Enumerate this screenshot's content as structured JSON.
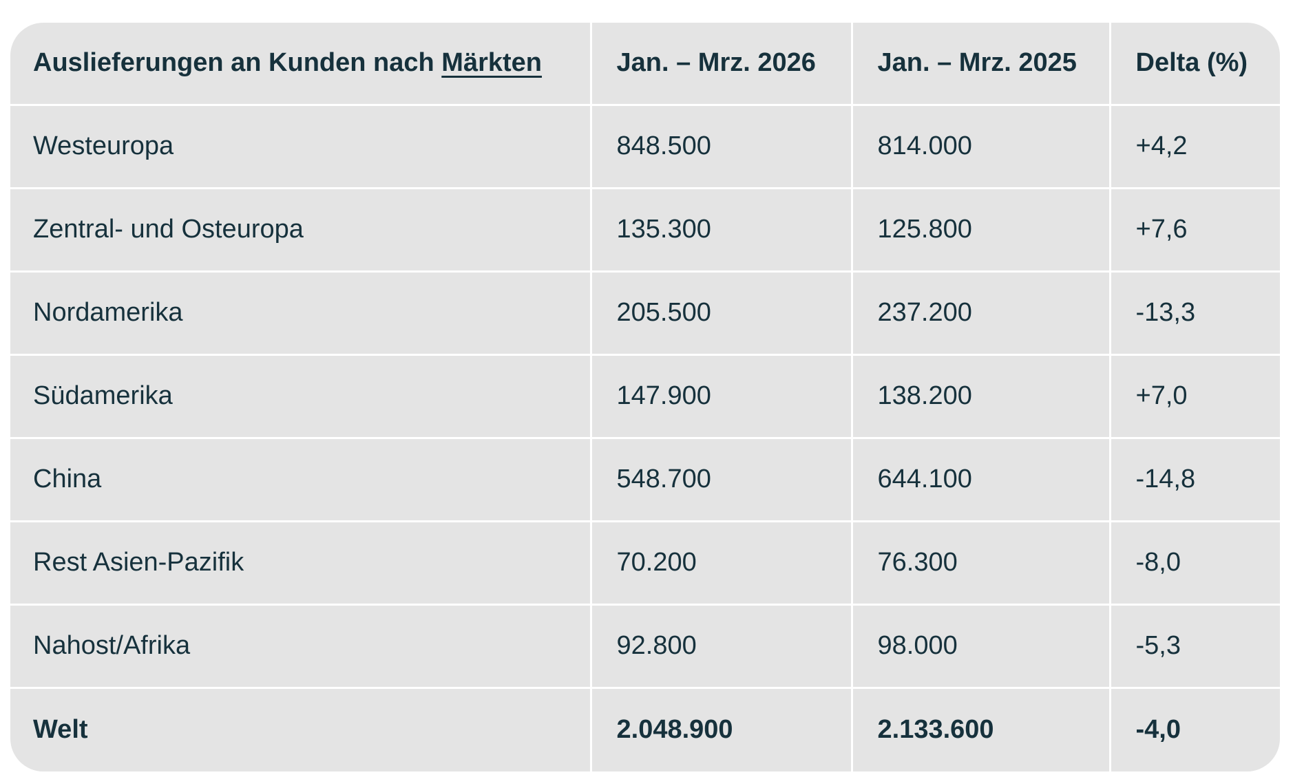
{
  "table": {
    "title_prefix": "Auslieferungen an Kunden nach ",
    "title_link": "Märkten",
    "columns": [
      "Jan. – Mrz. 2026",
      "Jan. – Mrz. 2025",
      "Delta (%)"
    ],
    "rows": [
      {
        "label": "Westeuropa",
        "v2026": "848.500",
        "v2025": "814.000",
        "delta": "+4,2"
      },
      {
        "label": "Zentral- und Osteuropa",
        "v2026": "135.300",
        "v2025": "125.800",
        "delta": "+7,6"
      },
      {
        "label": "Nordamerika",
        "v2026": "205.500",
        "v2025": "237.200",
        "delta": "-13,3"
      },
      {
        "label": "Südamerika",
        "v2026": "147.900",
        "v2025": "138.200",
        "delta": "+7,0"
      },
      {
        "label": "China",
        "v2026": "548.700",
        "v2025": "644.100",
        "delta": "-14,8"
      },
      {
        "label": "Rest Asien-Pazifik",
        "v2026": "70.200",
        "v2025": "76.300",
        "delta": "-8,0"
      },
      {
        "label": "Nahost/Afrika",
        "v2026": "92.800",
        "v2025": "98.000",
        "delta": "-5,3"
      }
    ],
    "total": {
      "label": "Welt",
      "v2026": "2.048.900",
      "v2025": "2.133.600",
      "delta": "-4,0"
    },
    "colors": {
      "cell_background": "#e4e4e4",
      "gridline": "#ffffff",
      "text": "#16313c"
    }
  },
  "chart_data": {
    "type": "table",
    "title": "Auslieferungen an Kunden nach Märkten",
    "columns": [
      "Jan. – Mrz. 2026",
      "Jan. – Mrz. 2025",
      "Delta (%)"
    ],
    "categories": [
      "Westeuropa",
      "Zentral- und Osteuropa",
      "Nordamerika",
      "Südamerika",
      "China",
      "Rest Asien-Pazifik",
      "Nahost/Afrika"
    ],
    "series": [
      {
        "name": "Jan. – Mrz. 2026",
        "values": [
          848500,
          135300,
          205500,
          147900,
          548700,
          70200,
          92800
        ]
      },
      {
        "name": "Jan. – Mrz. 2025",
        "values": [
          814000,
          125800,
          237200,
          138200,
          644100,
          76300,
          98000
        ]
      },
      {
        "name": "Delta (%)",
        "values": [
          4.2,
          7.6,
          -13.3,
          7.0,
          -14.8,
          -8.0,
          -5.3
        ]
      }
    ],
    "total": {
      "name": "Welt",
      "v2026": 2048900,
      "v2025": 2133600,
      "delta_pct": -4.0
    }
  }
}
